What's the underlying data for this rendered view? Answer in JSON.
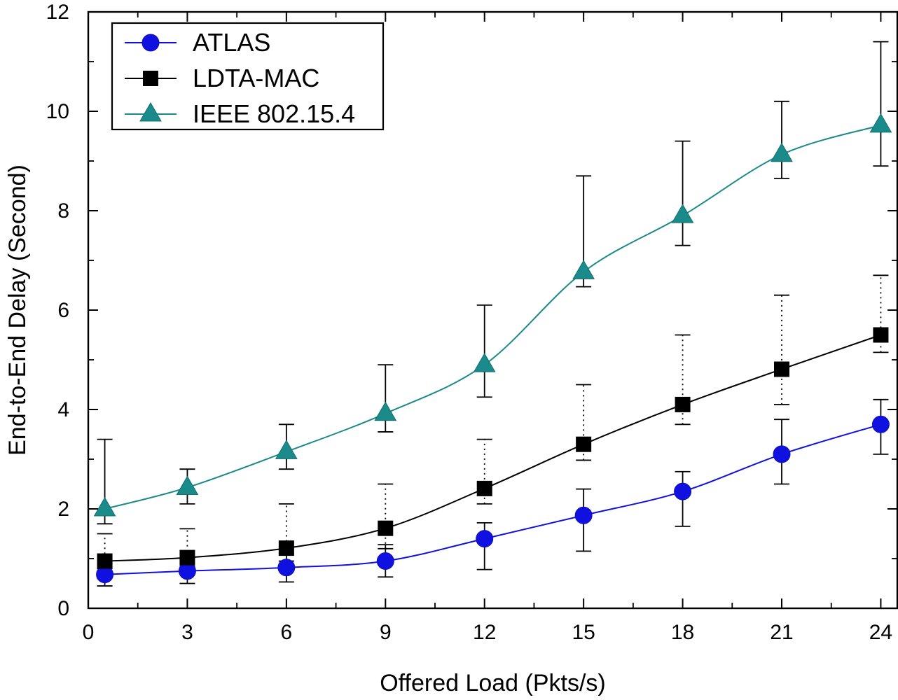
{
  "chart_data": {
    "type": "line",
    "title": "",
    "xlabel": "Offered Load (Pkts/s)",
    "ylabel": "End-to-End Delay (Second)",
    "xlim": [
      0,
      24.5
    ],
    "ylim": [
      0,
      12
    ],
    "xticks": [
      0,
      3,
      6,
      9,
      12,
      15,
      18,
      21,
      24
    ],
    "yticks": [
      0,
      2,
      4,
      6,
      8,
      10,
      12
    ],
    "x_tick_labels": [
      "0",
      "3",
      "6",
      "9",
      "12",
      "15",
      "18",
      "21",
      "24"
    ],
    "y_tick_labels": [
      "0",
      "2",
      "4",
      "6",
      "8",
      "10",
      "12"
    ],
    "x": [
      0.5,
      3,
      6,
      9,
      12,
      15,
      18,
      21,
      24
    ],
    "legend_position": "top-left",
    "series": [
      {
        "name": "ATLAS",
        "color": "#1010e0",
        "marker": "circle",
        "errorbar_style": "solid",
        "values": [
          0.68,
          0.75,
          0.82,
          0.95,
          1.4,
          1.87,
          2.35,
          3.1,
          3.7
        ],
        "error_low": [
          0.45,
          0.5,
          0.53,
          0.63,
          0.78,
          1.15,
          1.65,
          2.5,
          3.1
        ],
        "error_high": [
          0.9,
          1.0,
          1.1,
          1.28,
          1.72,
          2.4,
          2.75,
          3.8,
          4.2
        ]
      },
      {
        "name": "LDTA-MAC",
        "color": "#000000",
        "marker": "square",
        "errorbar_style": "dotted",
        "values": [
          0.95,
          1.02,
          1.21,
          1.61,
          2.41,
          3.3,
          4.1,
          4.81,
          5.5
        ],
        "error_low": [
          0.8,
          0.85,
          0.95,
          1.2,
          2.1,
          2.98,
          3.7,
          4.1,
          5.15
        ],
        "error_high": [
          1.5,
          1.6,
          2.1,
          2.5,
          3.4,
          4.5,
          5.5,
          6.3,
          6.7
        ]
      },
      {
        "name": "IEEE 802.15.4",
        "color": "#1a8a8a",
        "marker": "triangle",
        "errorbar_style": "solid",
        "values": [
          2.0,
          2.43,
          3.15,
          3.92,
          4.9,
          6.77,
          7.9,
          9.13,
          9.72
        ],
        "error_low": [
          1.7,
          2.1,
          2.8,
          3.55,
          4.25,
          6.47,
          7.3,
          8.65,
          8.9
        ],
        "error_high": [
          3.4,
          2.8,
          3.7,
          4.9,
          6.1,
          8.7,
          9.4,
          10.2,
          11.4
        ]
      }
    ]
  }
}
